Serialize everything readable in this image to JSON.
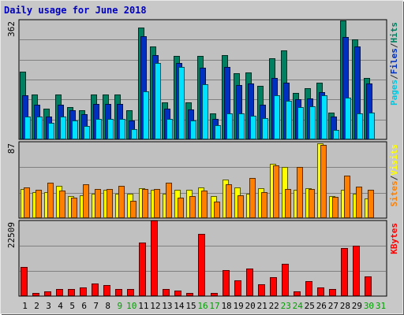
{
  "title": "Daily usage for June 2018",
  "chart_data": [
    {
      "type": "bar",
      "panel": "pages-files-hits",
      "y_max_label": "362",
      "ylim": [
        0,
        362
      ],
      "right_label": {
        "parts": [
          "Pages",
          "/",
          "Files",
          "/",
          "Hits"
        ],
        "colors": [
          "#00c8e0",
          "#303030",
          "#0030c0",
          "#303030",
          "#008060"
        ]
      },
      "categories": [
        "1",
        "2",
        "3",
        "4",
        "5",
        "6",
        "7",
        "8",
        "9",
        "10",
        "11",
        "12",
        "13",
        "14",
        "15",
        "16",
        "17",
        "18",
        "19",
        "20",
        "21",
        "22",
        "23",
        "24",
        "25",
        "26",
        "27",
        "28",
        "29",
        "30",
        "31"
      ],
      "series": [
        {
          "name": "Hits",
          "color": "#008060",
          "values": [
            204,
            136,
            92,
            136,
            98,
            88,
            136,
            136,
            136,
            88,
            339,
            282,
            111,
            252,
            113,
            252,
            78,
            254,
            201,
            202,
            161,
            246,
            270,
            141,
            154,
            172,
            80,
            360,
            303,
            185,
            0
          ]
        },
        {
          "name": "Files",
          "color": "#0030c0",
          "values": [
            134,
            104,
            70,
            104,
            88,
            76,
            108,
            108,
            108,
            56,
            313,
            256,
            92,
            232,
            90,
            216,
            62,
            218,
            165,
            170,
            104,
            185,
            172,
            122,
            124,
            144,
            68,
            309,
            281,
            169,
            0
          ]
        },
        {
          "name": "Pages",
          "color": "#00e0ff",
          "values": [
            70,
            68,
            50,
            70,
            58,
            40,
            62,
            62,
            62,
            32,
            146,
            231,
            62,
            218,
            56,
            166,
            44,
            78,
            78,
            71,
            64,
            133,
            117,
            98,
            99,
            133,
            29,
            127,
            78,
            82,
            0
          ]
        }
      ]
    },
    {
      "type": "bar",
      "panel": "sites-visits",
      "y_max_label": "87",
      "ylim": [
        0,
        87
      ],
      "right_label": {
        "parts": [
          "Sites",
          "/",
          "Visits"
        ],
        "colors": [
          "#ff8000",
          "#303030",
          "#ffff00"
        ]
      },
      "categories": [
        "1",
        "2",
        "3",
        "4",
        "5",
        "6",
        "7",
        "8",
        "9",
        "10",
        "11",
        "12",
        "13",
        "14",
        "15",
        "16",
        "17",
        "18",
        "19",
        "20",
        "21",
        "22",
        "23",
        "24",
        "25",
        "26",
        "27",
        "28",
        "29",
        "30",
        "31"
      ],
      "series": [
        {
          "name": "Visits",
          "color": "#ffff00",
          "values": [
            33,
            30,
            30,
            37,
            25,
            26,
            28,
            32,
            28,
            28,
            34,
            32,
            28,
            32,
            32,
            35,
            25,
            44,
            35,
            28,
            34,
            62,
            58,
            32,
            34,
            85,
            25,
            32,
            28,
            22,
            0
          ]
        },
        {
          "name": "Sites",
          "color": "#ff8000",
          "values": [
            35,
            32,
            40,
            31,
            23,
            39,
            33,
            33,
            37,
            20,
            33,
            33,
            40,
            23,
            25,
            31,
            19,
            39,
            26,
            46,
            30,
            60,
            33,
            58,
            33,
            83,
            24,
            48,
            36,
            32,
            0
          ]
        }
      ]
    },
    {
      "type": "bar",
      "panel": "kbytes",
      "y_max_label": "22509",
      "ylim": [
        0,
        22509
      ],
      "right_label": {
        "parts": [
          "KBytes"
        ],
        "colors": [
          "#ff0000"
        ]
      },
      "categories": [
        "1",
        "2",
        "3",
        "4",
        "5",
        "6",
        "7",
        "8",
        "9",
        "10",
        "11",
        "12",
        "13",
        "14",
        "15",
        "16",
        "17",
        "18",
        "19",
        "20",
        "21",
        "22",
        "23",
        "24",
        "25",
        "26",
        "27",
        "28",
        "29",
        "30",
        "31"
      ],
      "series": [
        {
          "name": "KBytes",
          "color": "#ff0000",
          "values": [
            8700,
            1000,
            1300,
            2000,
            2000,
            2500,
            3700,
            3200,
            2000,
            2000,
            16000,
            22400,
            2000,
            1700,
            1000,
            18500,
            1000,
            7800,
            4700,
            8200,
            3600,
            5600,
            9600,
            1500,
            4500,
            2500,
            2000,
            14200,
            15000,
            5800,
            0
          ]
        }
      ]
    }
  ],
  "x_axis": {
    "labels": [
      "1",
      "2",
      "3",
      "4",
      "5",
      "6",
      "7",
      "8",
      "9",
      "10",
      "11",
      "12",
      "13",
      "14",
      "15",
      "16",
      "17",
      "18",
      "19",
      "20",
      "21",
      "22",
      "23",
      "24",
      "25",
      "26",
      "27",
      "28",
      "29",
      "30",
      "31"
    ],
    "weekend_days": [
      "9",
      "10",
      "16",
      "17",
      "23",
      "24",
      "30",
      "31"
    ],
    "colors": {
      "weekday": "#000000",
      "weekend": "#00a000"
    }
  }
}
